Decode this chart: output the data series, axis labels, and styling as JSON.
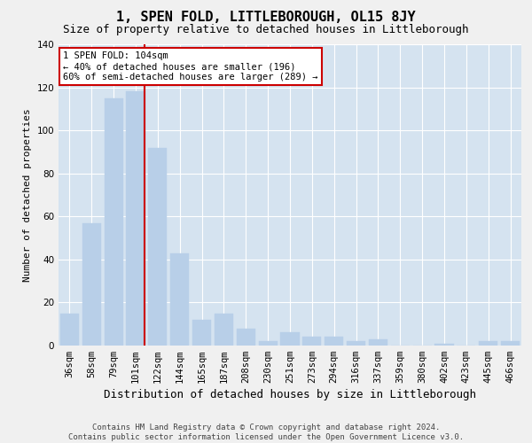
{
  "title": "1, SPEN FOLD, LITTLEBOROUGH, OL15 8JY",
  "subtitle": "Size of property relative to detached houses in Littleborough",
  "xlabel": "Distribution of detached houses by size in Littleborough",
  "ylabel": "Number of detached properties",
  "categories": [
    "36sqm",
    "58sqm",
    "79sqm",
    "101sqm",
    "122sqm",
    "144sqm",
    "165sqm",
    "187sqm",
    "208sqm",
    "230sqm",
    "251sqm",
    "273sqm",
    "294sqm",
    "316sqm",
    "337sqm",
    "359sqm",
    "380sqm",
    "402sqm",
    "423sqm",
    "445sqm",
    "466sqm"
  ],
  "values": [
    15,
    57,
    115,
    118,
    92,
    43,
    12,
    15,
    8,
    2,
    6,
    4,
    4,
    2,
    3,
    0,
    0,
    1,
    0,
    2,
    2
  ],
  "bar_color": "#b8cfe8",
  "bar_edgecolor": "#b8cfe8",
  "grid_color": "#ffffff",
  "bg_color": "#d5e3f0",
  "vline_x": 3.42,
  "vline_color": "#cc0000",
  "annotation_text": "1 SPEN FOLD: 104sqm\n← 40% of detached houses are smaller (196)\n60% of semi-detached houses are larger (289) →",
  "annotation_box_color": "#ffffff",
  "annotation_box_edgecolor": "#cc0000",
  "ylim": [
    0,
    140
  ],
  "yticks": [
    0,
    20,
    40,
    60,
    80,
    100,
    120,
    140
  ],
  "footer": "Contains HM Land Registry data © Crown copyright and database right 2024.\nContains public sector information licensed under the Open Government Licence v3.0.",
  "title_fontsize": 11,
  "subtitle_fontsize": 9,
  "xlabel_fontsize": 9,
  "ylabel_fontsize": 8,
  "tick_fontsize": 7.5,
  "annotation_fontsize": 7.5,
  "footer_fontsize": 6.5
}
